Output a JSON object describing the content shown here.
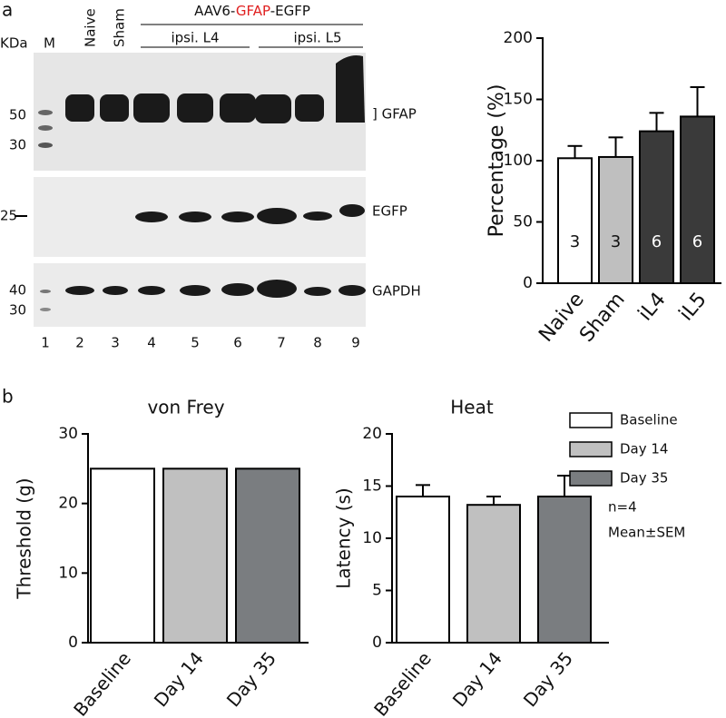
{
  "panels": {
    "a": "a",
    "b": "b"
  },
  "blot": {
    "kda": "KDa",
    "marker": "M",
    "lanes_top": [
      "Naive",
      "Sham"
    ],
    "construct": [
      "AAV6-",
      "GFAP",
      "-EGFP"
    ],
    "groups": [
      "ipsi. L4",
      "ipsi. L5"
    ],
    "markers": [
      {
        "value": 50,
        "label": "50"
      },
      {
        "value": 30,
        "label": "30"
      },
      {
        "value": 25,
        "label": "25"
      },
      {
        "value": 40,
        "label": "40"
      },
      {
        "value": 30,
        "label": "30"
      }
    ],
    "lane_numbers": [
      "1",
      "2",
      "3",
      "4",
      "5",
      "6",
      "7",
      "8",
      "9"
    ],
    "bands": [
      "] GFAP",
      "EGFP",
      "GAPDH"
    ]
  },
  "chart_data": [
    {
      "type": "bar",
      "ylabel": "Percentage (%)",
      "categories": [
        "Naive",
        "Sham",
        "iL4",
        "iL5"
      ],
      "values": [
        102,
        103,
        124,
        136
      ],
      "errors": [
        10,
        16,
        15,
        24
      ],
      "bar_labels": [
        "3",
        "3",
        "6",
        "6"
      ],
      "colors": [
        "#ffffff",
        "#bfbfbf",
        "#3a3a3a",
        "#3a3a3a"
      ],
      "ylim": [
        0,
        200
      ],
      "yticks": [
        0,
        50,
        100,
        150,
        200
      ]
    },
    {
      "type": "bar",
      "title": "von Frey",
      "ylabel": "Threshold (g)",
      "categories": [
        "Baseline",
        "Day 14",
        "Day 35"
      ],
      "values": [
        25,
        25,
        25
      ],
      "colors": [
        "#ffffff",
        "#c0c0c0",
        "#7a7d80"
      ],
      "ylim": [
        0,
        30
      ],
      "yticks": [
        0,
        10,
        20,
        30
      ]
    },
    {
      "type": "bar",
      "title": "Heat",
      "ylabel": "Latency (s)",
      "categories": [
        "Baseline",
        "Day 14",
        "Day 35"
      ],
      "values": [
        14,
        13.2,
        14
      ],
      "errors": [
        1.1,
        0.8,
        2
      ],
      "colors": [
        "#ffffff",
        "#c0c0c0",
        "#7a7d80"
      ],
      "ylim": [
        0,
        20
      ],
      "yticks": [
        0,
        5,
        10,
        15,
        20
      ],
      "legend": "right",
      "annotations": [
        "n=4",
        "Mean±SEM"
      ]
    }
  ]
}
